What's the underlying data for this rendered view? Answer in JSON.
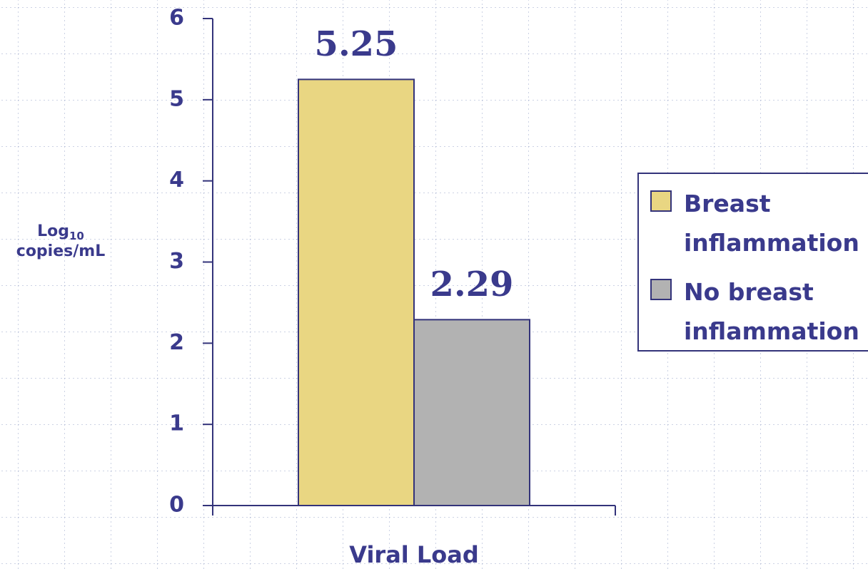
{
  "chart_data": {
    "type": "bar",
    "categories": [
      "Viral Load"
    ],
    "series": [
      {
        "name": "Breast inflammation",
        "color": "#e9d682",
        "values": [
          5.25
        ]
      },
      {
        "name": "No breast inflammation",
        "color": "#b2b2b2",
        "values": [
          2.29
        ]
      }
    ],
    "y_label": [
      "Log",
      "10",
      "copies/mL"
    ],
    "ylim": [
      0,
      6
    ],
    "yticks": [
      0,
      1,
      2,
      3,
      4,
      5,
      6
    ],
    "legend": "right",
    "grid": false
  }
}
